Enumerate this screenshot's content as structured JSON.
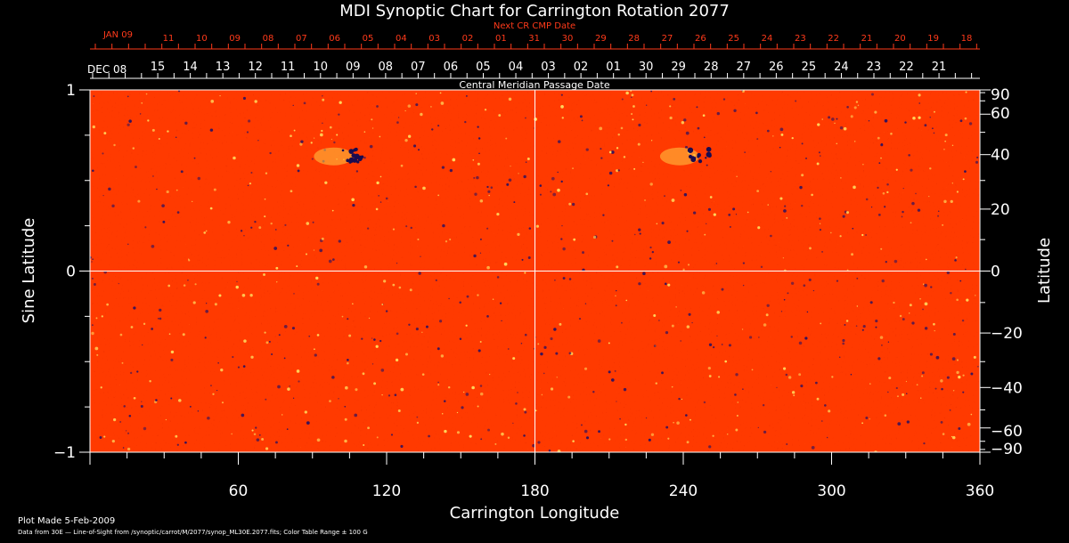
{
  "chart_data": {
    "type": "heatmap",
    "title": "MDI Synoptic Chart for Carrington Rotation 2077",
    "xlabel": "Carrington Longitude",
    "ylabel_left": "Sine Latitude",
    "ylabel_right": "Latitude",
    "xlim": [
      0,
      360
    ],
    "ylim": [
      -1,
      1
    ],
    "x_ticks": [
      60,
      120,
      180,
      240,
      300,
      360
    ],
    "y_ticks_left": [
      1,
      0,
      -1
    ],
    "y_ticks_right": [
      90,
      60,
      40,
      20,
      0,
      -20,
      -40,
      -60,
      -90
    ],
    "grid": "center lines at longitude 180 and sine latitude 0",
    "colorscale": [
      "#1a1060",
      "#ff3a00",
      "#ffee60"
    ],
    "color_table_range_gauss": 100,
    "features": [
      {
        "type": "active region",
        "longitude": 105,
        "latitude_deg": 40
      },
      {
        "type": "active region",
        "longitude": 245,
        "latitude_deg": 40
      }
    ],
    "top_axis": {
      "title": "Next CR CMP Date",
      "start_label": "JAN 09",
      "ticks": [
        "11",
        "10",
        "09",
        "08",
        "07",
        "06",
        "05",
        "04",
        "03",
        "02",
        "01",
        "31",
        "30",
        "29",
        "28",
        "27",
        "26",
        "25",
        "24",
        "23",
        "22",
        "21",
        "20",
        "19",
        "18"
      ],
      "color": "#ff3a1a"
    },
    "middle_axis": {
      "title": "Central Meridian Passage Date",
      "start_label": "DEC 08",
      "ticks": [
        "15",
        "14",
        "13",
        "12",
        "11",
        "10",
        "09",
        "08",
        "07",
        "06",
        "05",
        "04",
        "03",
        "02",
        "01",
        "30",
        "29",
        "28",
        "27",
        "26",
        "25",
        "24",
        "23",
        "22",
        "21"
      ]
    }
  },
  "footer": {
    "plot_made": "Plot Made  5-Feb-2009",
    "data_info": "Data from 30E — Line-of-Sight from /synoptic/carrot/M/2077/synop_ML30E.2077.fits; Color Table Range ± 100 G"
  }
}
